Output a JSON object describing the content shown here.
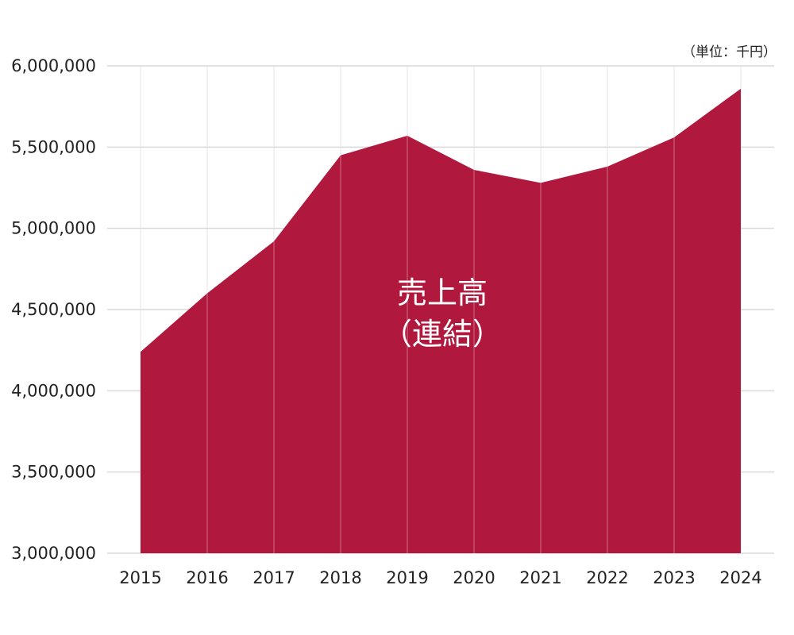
{
  "chart_data": {
    "type": "area",
    "title": "",
    "unit_label": "（単位：千円）",
    "xlabel": "",
    "ylabel": "",
    "categories": [
      "2015",
      "2016",
      "2017",
      "2018",
      "2019",
      "2020",
      "2021",
      "2022",
      "2023",
      "2024"
    ],
    "series": [
      {
        "name_line1": "売上高",
        "name_line2": "（連結）",
        "values": [
          4240000,
          4600000,
          4920000,
          5450000,
          5570000,
          5360000,
          5280000,
          5380000,
          5560000,
          5860000
        ],
        "color": "#b0183e"
      }
    ],
    "ylim": [
      3000000,
      6000000
    ],
    "yticks": [
      "3,000,000",
      "3,500,000",
      "4,000,000",
      "4,500,000",
      "5,000,000",
      "5,500,000",
      "6,000,000"
    ],
    "ytick_values": [
      3000000,
      3500000,
      4000000,
      4500000,
      5000000,
      5500000,
      6000000
    ],
    "grid": true,
    "colors": {
      "gridline": "#d9d9d9",
      "vline": "#e6e6e6",
      "inner_vline": "#e8a8b6"
    }
  }
}
